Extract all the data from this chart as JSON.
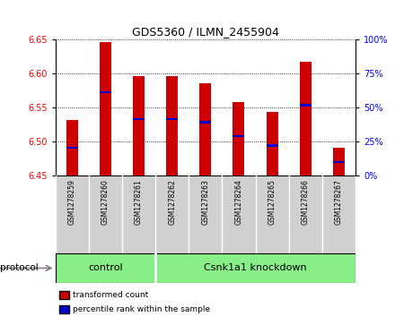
{
  "title": "GDS5360 / ILMN_2455904",
  "samples": [
    "GSM1278259",
    "GSM1278260",
    "GSM1278261",
    "GSM1278262",
    "GSM1278263",
    "GSM1278264",
    "GSM1278265",
    "GSM1278266",
    "GSM1278267"
  ],
  "bar_bottom": 6.45,
  "bar_tops": [
    6.531,
    6.645,
    6.595,
    6.595,
    6.585,
    6.558,
    6.543,
    6.617,
    6.491
  ],
  "percentile_values": [
    6.491,
    6.572,
    6.533,
    6.533,
    6.528,
    6.508,
    6.494,
    6.553,
    6.47
  ],
  "ylim_left": [
    6.45,
    6.65
  ],
  "ylim_right": [
    0,
    100
  ],
  "yticks_left": [
    6.45,
    6.5,
    6.55,
    6.6,
    6.65
  ],
  "yticks_right": [
    0,
    25,
    50,
    75,
    100
  ],
  "bar_color": "#cc0000",
  "percentile_color": "#0000cc",
  "ctrl_count": 3,
  "kd_count": 6,
  "control_label": "control",
  "knockdown_label": "Csnk1a1 knockdown",
  "protocol_label": "protocol",
  "group_color": "#88ee88",
  "label_bg_color": "#d0d0d0",
  "legend_red_label": "transformed count",
  "legend_blue_label": "percentile rank within the sample",
  "bar_width": 0.35
}
